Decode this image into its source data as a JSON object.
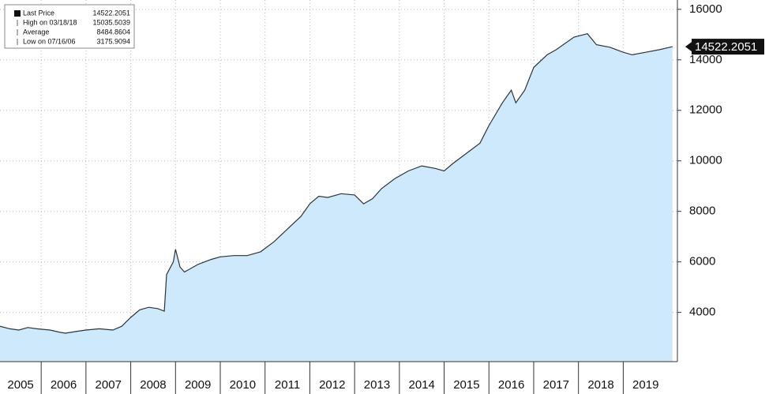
{
  "chart_data": {
    "type": "area",
    "legend": [
      {
        "label": "Last Price",
        "value": "14522.2051"
      },
      {
        "label": "High on 03/18/18",
        "value": "15035.5039"
      },
      {
        "label": "Average",
        "value": "8484.8604"
      },
      {
        "label": "Low on 07/16/06",
        "value": "3175.9094"
      }
    ],
    "last_label": "14522.2051",
    "x": [
      2005.08,
      2005.3,
      2005.5,
      2005.7,
      2005.9,
      2006.2,
      2006.4,
      2006.54,
      2006.8,
      2007.0,
      2007.3,
      2007.6,
      2007.8,
      2008.0,
      2008.2,
      2008.4,
      2008.6,
      2008.75,
      2008.8,
      2008.95,
      2009.0,
      2009.1,
      2009.2,
      2009.5,
      2009.8,
      2010.0,
      2010.3,
      2010.6,
      2010.9,
      2011.2,
      2011.5,
      2011.8,
      2012.0,
      2012.2,
      2012.4,
      2012.7,
      2013.0,
      2013.2,
      2013.4,
      2013.6,
      2013.9,
      2014.2,
      2014.5,
      2014.8,
      2015.0,
      2015.2,
      2015.5,
      2015.8,
      2016.0,
      2016.3,
      2016.5,
      2016.6,
      2016.8,
      2017.0,
      2017.3,
      2017.5,
      2017.9,
      2018.2,
      2018.4,
      2018.7,
      2019.0,
      2019.2,
      2019.5,
      2019.8,
      2020.1
    ],
    "series": [
      {
        "name": "Last Price",
        "color": "#333333",
        "fill": "#cde9fb",
        "values": [
          3450,
          3350,
          3300,
          3400,
          3350,
          3300,
          3220,
          3176,
          3250,
          3300,
          3350,
          3300,
          3450,
          3800,
          4100,
          4200,
          4150,
          4050,
          5500,
          6000,
          6500,
          5800,
          5600,
          5900,
          6100,
          6200,
          6250,
          6250,
          6400,
          6800,
          7300,
          7800,
          8300,
          8600,
          8550,
          8700,
          8650,
          8300,
          8500,
          8900,
          9300,
          9600,
          9800,
          9700,
          9600,
          9900,
          10300,
          10700,
          11400,
          12300,
          12800,
          12300,
          12800,
          13700,
          14200,
          14400,
          14900,
          15036,
          14600,
          14500,
          14300,
          14200,
          14300,
          14400,
          14522.2051
        ]
      }
    ],
    "xlim": [
      2005.08,
      2020.21
    ],
    "xticks": [
      2005,
      2006,
      2007,
      2008,
      2009,
      2010,
      2011,
      2012,
      2013,
      2014,
      2015,
      2016,
      2017,
      2018,
      2019
    ],
    "ylim": [
      2050,
      16370
    ],
    "yticks": [
      4000,
      6000,
      8000,
      10000,
      12000,
      14000,
      16000
    ],
    "grid": true
  }
}
